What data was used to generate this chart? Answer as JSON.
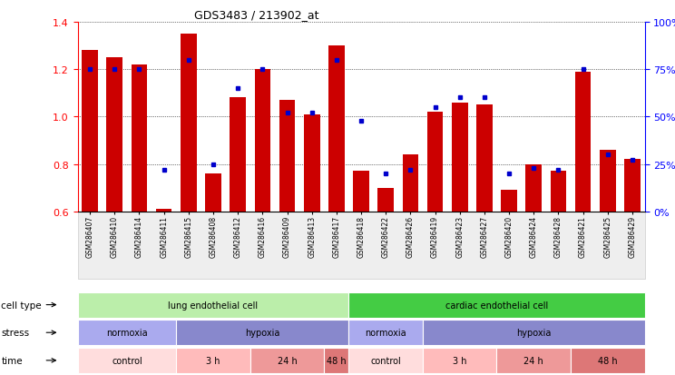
{
  "title": "GDS3483 / 213902_at",
  "samples": [
    "GSM286407",
    "GSM286410",
    "GSM286414",
    "GSM286411",
    "GSM286415",
    "GSM286408",
    "GSM286412",
    "GSM286416",
    "GSM286409",
    "GSM286413",
    "GSM286417",
    "GSM286418",
    "GSM286422",
    "GSM286426",
    "GSM286419",
    "GSM286423",
    "GSM286427",
    "GSM286420",
    "GSM286424",
    "GSM286428",
    "GSM286421",
    "GSM286425",
    "GSM286429"
  ],
  "transformed_count": [
    1.28,
    1.25,
    1.22,
    0.61,
    1.35,
    0.76,
    1.08,
    1.2,
    1.07,
    1.01,
    1.3,
    0.77,
    0.7,
    0.84,
    1.02,
    1.06,
    1.05,
    0.69,
    0.8,
    0.77,
    1.19,
    0.86,
    0.82
  ],
  "percentile_rank": [
    75,
    75,
    75,
    22,
    80,
    25,
    65,
    75,
    52,
    52,
    80,
    48,
    20,
    22,
    55,
    60,
    60,
    20,
    23,
    22,
    75,
    30,
    27
  ],
  "ylim_left": [
    0.6,
    1.4
  ],
  "ylim_right": [
    0,
    100
  ],
  "yticks_left": [
    0.6,
    0.8,
    1.0,
    1.2,
    1.4
  ],
  "yticks_right": [
    0,
    25,
    50,
    75,
    100
  ],
  "bar_color": "#cc0000",
  "dot_color": "#0000cc",
  "cell_type_groups": [
    {
      "label": "lung endothelial cell",
      "start": 0,
      "end": 10,
      "color": "#bbeeaa"
    },
    {
      "label": "cardiac endothelial cell",
      "start": 11,
      "end": 22,
      "color": "#44cc44"
    }
  ],
  "stress_groups": [
    {
      "label": "normoxia",
      "start": 0,
      "end": 3,
      "color": "#aaaaee"
    },
    {
      "label": "hypoxia",
      "start": 4,
      "end": 10,
      "color": "#8888cc"
    },
    {
      "label": "normoxia",
      "start": 11,
      "end": 13,
      "color": "#aaaaee"
    },
    {
      "label": "hypoxia",
      "start": 14,
      "end": 22,
      "color": "#8888cc"
    }
  ],
  "time_groups": [
    {
      "label": "control",
      "start": 0,
      "end": 3,
      "color": "#ffdddd"
    },
    {
      "label": "3 h",
      "start": 4,
      "end": 6,
      "color": "#ffbbbb"
    },
    {
      "label": "24 h",
      "start": 7,
      "end": 9,
      "color": "#ee9999"
    },
    {
      "label": "48 h",
      "start": 10,
      "end": 10,
      "color": "#dd7777"
    },
    {
      "label": "control",
      "start": 11,
      "end": 13,
      "color": "#ffdddd"
    },
    {
      "label": "3 h",
      "start": 14,
      "end": 16,
      "color": "#ffbbbb"
    },
    {
      "label": "24 h",
      "start": 17,
      "end": 19,
      "color": "#ee9999"
    },
    {
      "label": "48 h",
      "start": 20,
      "end": 22,
      "color": "#dd7777"
    }
  ]
}
